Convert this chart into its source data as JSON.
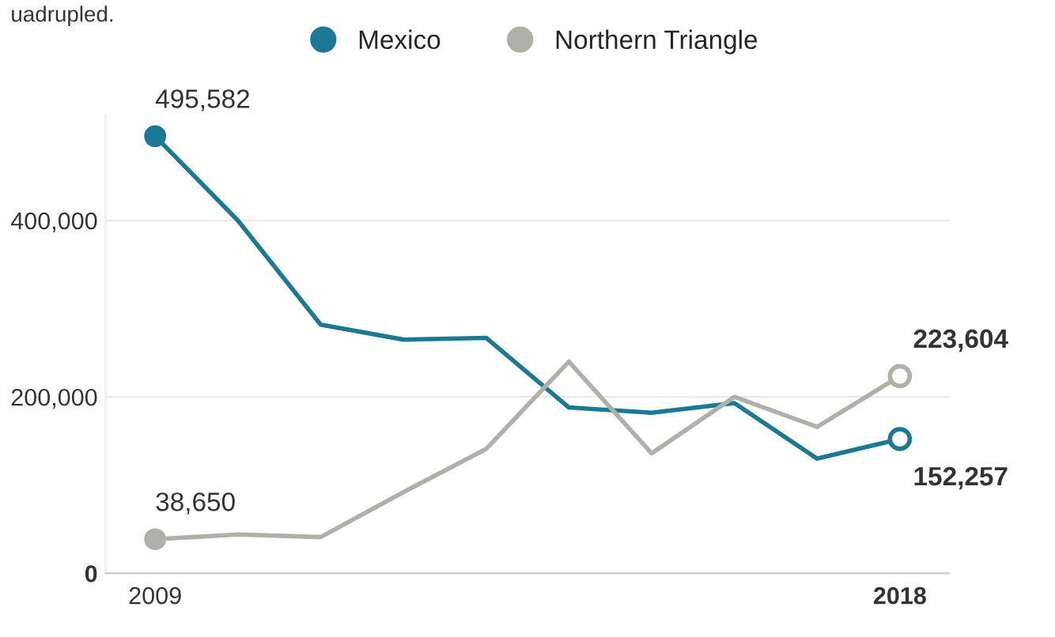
{
  "chart_data": {
    "type": "line",
    "subtitle": "uadrupled.",
    "x": [
      2009,
      2010,
      2011,
      2012,
      2013,
      2014,
      2015,
      2016,
      2017,
      2018
    ],
    "series": [
      {
        "name": "Mexico",
        "color": "#1a7a96",
        "values": [
          495582,
          400000,
          282000,
          265000,
          267000,
          188000,
          182000,
          193000,
          130000,
          152257
        ],
        "value_labels": [
          "495,582",
          null,
          null,
          null,
          null,
          null,
          null,
          null,
          null,
          "152,257"
        ]
      },
      {
        "name": "Northern Triangle",
        "color": "#b0b0aa",
        "values": [
          38650,
          44000,
          41000,
          92000,
          141000,
          240000,
          136000,
          200000,
          166000,
          223604
        ],
        "value_labels": [
          "38,650",
          null,
          null,
          null,
          null,
          null,
          null,
          null,
          null,
          "223,604"
        ]
      }
    ],
    "xlim": [
      2008.4,
      2018.6
    ],
    "xticks": [
      2009,
      2018
    ],
    "ylim": [
      0,
      520000
    ],
    "yticks": [
      0,
      {
        "value": 200000,
        "label": "200,000"
      },
      {
        "value": 400000,
        "label": "400,000"
      }
    ],
    "grid": "y",
    "legend": "top"
  }
}
